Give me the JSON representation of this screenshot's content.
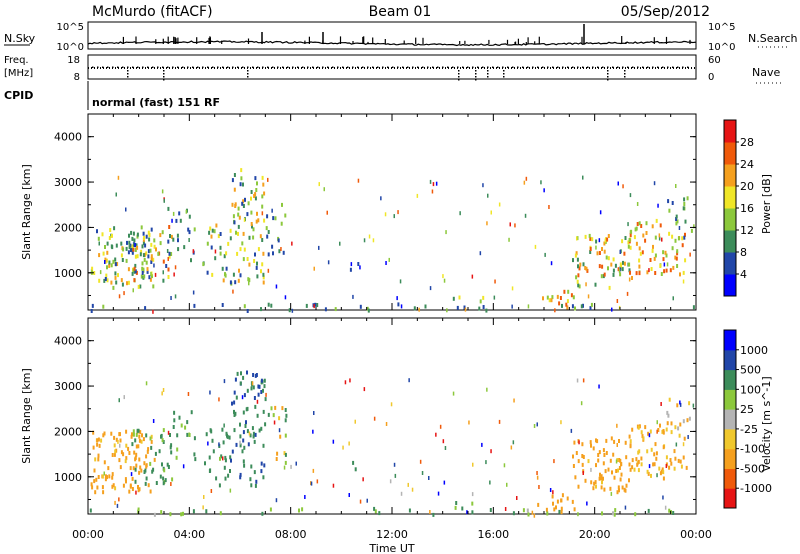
{
  "header": {
    "station": "McMurdo (fitACF)",
    "beam": "Beam 01",
    "date": "05/Sep/2012"
  },
  "top_panels": {
    "nsky_label": "N.Sky",
    "nsky_ticks": [
      "10^5",
      "10^0"
    ],
    "nsearch_label": "N.Search",
    "nsearch_ticks": [
      "10^5",
      "10^0"
    ],
    "freq_label_1": "Freq.",
    "freq_label_2": "[MHz]",
    "freq_ticks": [
      "18",
      "8"
    ],
    "nave_label": "Nave",
    "nave_ticks": [
      "60",
      "0"
    ],
    "cpid_label": "CPID",
    "cpid_value": "normal (fast) 151 RF"
  },
  "colors": {
    "power_scale": [
      "#0000ff",
      "#2146a8",
      "#3c8c5a",
      "#8cc83c",
      "#f0e628",
      "#f5a01e",
      "#f05a0a",
      "#e61414"
    ],
    "velocity_scale": [
      "#e61414",
      "#f05a0a",
      "#f5a01e",
      "#f0c82d",
      "#b4b4b4",
      "#8cc83c",
      "#3c8c5a",
      "#2146a8",
      "#0000ff"
    ]
  },
  "chart_data": [
    {
      "type": "heatmap",
      "title": "Power",
      "ylabel": "Slant Range [km]",
      "xlabel": "",
      "x_ticks": [
        "00:00",
        "04:00",
        "08:00",
        "12:00",
        "16:00",
        "20:00",
        "00:00"
      ],
      "x_range_hours": [
        0,
        24
      ],
      "y_range_km": [
        180,
        4500
      ],
      "y_ticks": [
        1000,
        2000,
        3000,
        4000
      ],
      "colorbar": {
        "label": "Power [dB]",
        "ticks": [
          "4",
          "8",
          "12",
          "16",
          "20",
          "24",
          "28"
        ],
        "range": [
          0,
          32
        ]
      },
      "scatter_blobs": [
        {
          "t": [
            0.1,
            2.6
          ],
          "r": [
            700,
            2050
          ],
          "v": [
            6,
            22
          ],
          "density": 0.7
        },
        {
          "t": [
            0.8,
            1.8
          ],
          "r": [
            1200,
            1900
          ],
          "v": [
            4,
            12
          ],
          "density": 0.5
        },
        {
          "t": [
            1.7,
            3.3
          ],
          "r": [
            850,
            2100
          ],
          "v": [
            5,
            28
          ],
          "density": 0.55
        },
        {
          "t": [
            3.1,
            4.2
          ],
          "r": [
            1300,
            2500
          ],
          "v": [
            4,
            14
          ],
          "density": 0.35
        },
        {
          "t": [
            4.5,
            5.6
          ],
          "r": [
            850,
            2100
          ],
          "v": [
            4,
            22
          ],
          "density": 0.5
        },
        {
          "t": [
            5.6,
            7.0
          ],
          "r": [
            800,
            3400
          ],
          "v": [
            6,
            24
          ],
          "density": 0.55
        },
        {
          "t": [
            7.0,
            7.8
          ],
          "r": [
            1200,
            2600
          ],
          "v": [
            4,
            16
          ],
          "density": 0.35
        },
        {
          "t": [
            10.3,
            10.8
          ],
          "r": [
            1000,
            1400
          ],
          "v": [
            4,
            8
          ],
          "density": 0.3
        },
        {
          "t": [
            14.3,
            15.6
          ],
          "r": [
            250,
            500
          ],
          "v": [
            8,
            22
          ],
          "density": 0.4
        },
        {
          "t": [
            17.7,
            19.2
          ],
          "r": [
            260,
            650
          ],
          "v": [
            14,
            28
          ],
          "density": 0.65
        },
        {
          "t": [
            19.1,
            21.5
          ],
          "r": [
            700,
            1900
          ],
          "v": [
            8,
            28
          ],
          "density": 0.6
        },
        {
          "t": [
            21.3,
            23.6
          ],
          "r": [
            1000,
            2200
          ],
          "v": [
            12,
            28
          ],
          "density": 0.6
        },
        {
          "t": [
            22.8,
            23.8
          ],
          "r": [
            1800,
            2800
          ],
          "v": [
            6,
            16
          ],
          "density": 0.35
        },
        {
          "t": [
            0.0,
            24.0
          ],
          "r": [
            200,
            350
          ],
          "v": [
            4,
            14
          ],
          "density": 0.25
        }
      ]
    },
    {
      "type": "heatmap",
      "title": "Velocity",
      "ylabel": "Slant Range [km]",
      "xlabel": "Time UT",
      "x_ticks": [
        "00:00",
        "04:00",
        "08:00",
        "12:00",
        "16:00",
        "20:00",
        "00:00"
      ],
      "x_range_hours": [
        0,
        24
      ],
      "y_range_km": [
        180,
        4500
      ],
      "y_ticks": [
        1000,
        2000,
        3000,
        4000
      ],
      "colorbar": {
        "label": "Velocity [m s^-1]",
        "ticks": [
          "1000",
          "500",
          "100",
          "25",
          "-25",
          "-100",
          "-500",
          "-1000"
        ],
        "range": [
          -1000,
          1000
        ]
      },
      "scatter_blobs": [
        {
          "t": [
            0.1,
            2.6
          ],
          "r": [
            700,
            2050
          ],
          "v": [
            -300,
            -80
          ],
          "density": 0.75
        },
        {
          "t": [
            1.7,
            3.3
          ],
          "r": [
            850,
            2100
          ],
          "v": [
            50,
            300
          ],
          "density": 0.5
        },
        {
          "t": [
            3.1,
            4.2
          ],
          "r": [
            1300,
            2500
          ],
          "v": [
            50,
            250
          ],
          "density": 0.35
        },
        {
          "t": [
            4.5,
            5.6
          ],
          "r": [
            850,
            2100
          ],
          "v": [
            80,
            300
          ],
          "density": 0.5
        },
        {
          "t": [
            5.6,
            7.0
          ],
          "r": [
            800,
            3400
          ],
          "v": [
            100,
            800
          ],
          "density": 0.55
        },
        {
          "t": [
            7.0,
            7.8
          ],
          "r": [
            1200,
            2600
          ],
          "v": [
            -200,
            300
          ],
          "density": 0.35
        },
        {
          "t": [
            10.3,
            10.8
          ],
          "r": [
            1000,
            1400
          ],
          "v": [
            60,
            200
          ],
          "density": 0.3
        },
        {
          "t": [
            14.3,
            15.6
          ],
          "r": [
            250,
            500
          ],
          "v": [
            20,
            150
          ],
          "density": 0.35
        },
        {
          "t": [
            17.7,
            19.2
          ],
          "r": [
            260,
            650
          ],
          "v": [
            -300,
            -80
          ],
          "density": 0.65
        },
        {
          "t": [
            19.1,
            21.5
          ],
          "r": [
            700,
            1900
          ],
          "v": [
            -300,
            -90
          ],
          "density": 0.65
        },
        {
          "t": [
            21.3,
            23.6
          ],
          "r": [
            1000,
            2200
          ],
          "v": [
            -250,
            -40
          ],
          "density": 0.6
        },
        {
          "t": [
            22.8,
            23.8
          ],
          "r": [
            1800,
            2800
          ],
          "v": [
            -200,
            0
          ],
          "density": 0.35
        },
        {
          "t": [
            0.0,
            24.0
          ],
          "r": [
            200,
            350
          ],
          "v": [
            0,
            150
          ],
          "density": 0.25
        }
      ]
    }
  ]
}
